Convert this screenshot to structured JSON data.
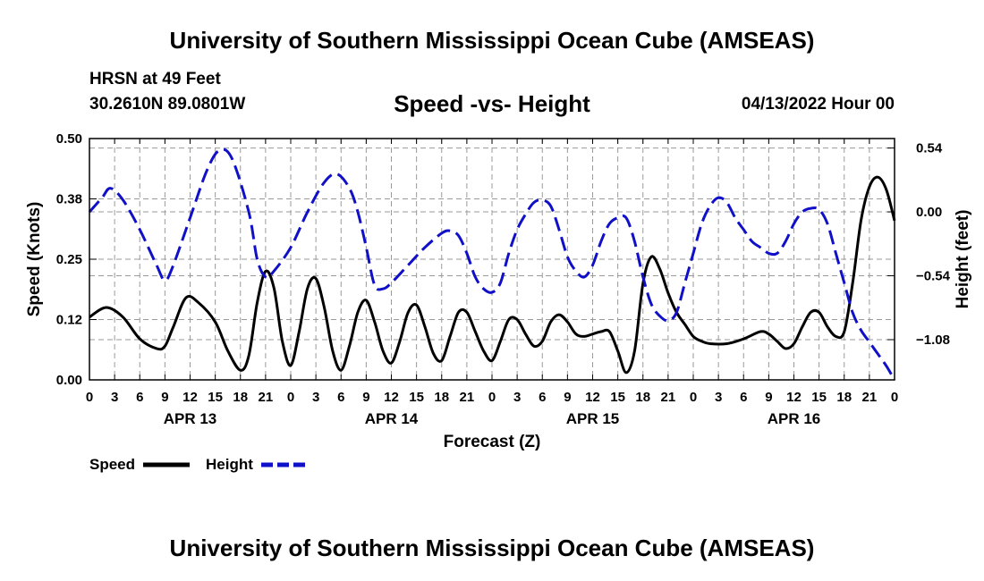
{
  "header": {
    "title": "University of Southern Mississippi Ocean Cube (AMSEAS)",
    "station": "HRSN at 49 Feet",
    "coords": "30.2610N  89.0801W",
    "subtitle": "Speed -vs- Height",
    "datetime": "04/13/2022 Hour 00"
  },
  "footer": {
    "title": "University of Southern Mississippi Ocean Cube (AMSEAS)"
  },
  "colors": {
    "speed": "#000000",
    "height": "#1010c8",
    "grid": "#9a9a9a"
  },
  "legend": {
    "speed_label": "Speed",
    "height_label": "Height"
  },
  "chart_data": {
    "type": "line",
    "xlabel": "Forecast (Z)",
    "ylabel_left": "Speed (Knots)",
    "ylabel_right": "Height (feet)",
    "x_unit": "forecast hour",
    "xlim": [
      0,
      96
    ],
    "ylim_left": [
      0,
      0.5
    ],
    "ylim_right": [
      -1.42,
      0.62
    ],
    "left_ticks": [
      {
        "value": 0.0,
        "label": "0.00"
      },
      {
        "value": 0.125,
        "label": "0.12"
      },
      {
        "value": 0.25,
        "label": "0.25"
      },
      {
        "value": 0.375,
        "label": "0.38"
      },
      {
        "value": 0.5,
        "label": "0.50"
      }
    ],
    "right_ticks": [
      {
        "value": 0.54,
        "label": "0.54"
      },
      {
        "value": 0.0,
        "label": "0.00"
      },
      {
        "value": -0.54,
        "label": "−0.54"
      },
      {
        "value": -1.08,
        "label": "−1.08"
      }
    ],
    "x_tick_labels": [
      "0",
      "3",
      "6",
      "9",
      "12",
      "15",
      "18",
      "21",
      "0",
      "3",
      "6",
      "9",
      "12",
      "15",
      "18",
      "21",
      "0",
      "3",
      "6",
      "9",
      "12",
      "15",
      "18",
      "21",
      "0",
      "3",
      "6",
      "9",
      "12",
      "15",
      "18",
      "21",
      "0"
    ],
    "day_labels": [
      {
        "hour": 12,
        "label": "APR 13"
      },
      {
        "hour": 36,
        "label": "APR 14"
      },
      {
        "hour": 60,
        "label": "APR 15"
      },
      {
        "hour": 84,
        "label": "APR 16"
      }
    ],
    "series": [
      {
        "name": "Speed",
        "axis": "left",
        "points": [
          [
            0,
            0.13
          ],
          [
            2,
            0.15
          ],
          [
            4,
            0.13
          ],
          [
            6,
            0.085
          ],
          [
            8,
            0.065
          ],
          [
            9,
            0.07
          ],
          [
            10,
            0.11
          ],
          [
            11.5,
            0.17
          ],
          [
            13,
            0.16
          ],
          [
            15,
            0.12
          ],
          [
            16.5,
            0.06
          ],
          [
            18,
            0.02
          ],
          [
            19,
            0.05
          ],
          [
            20,
            0.16
          ],
          [
            21,
            0.225
          ],
          [
            22,
            0.19
          ],
          [
            23,
            0.08
          ],
          [
            24,
            0.03
          ],
          [
            25,
            0.1
          ],
          [
            26,
            0.19
          ],
          [
            27,
            0.21
          ],
          [
            28,
            0.15
          ],
          [
            29,
            0.06
          ],
          [
            30,
            0.02
          ],
          [
            31,
            0.07
          ],
          [
            32,
            0.14
          ],
          [
            33,
            0.165
          ],
          [
            34,
            0.12
          ],
          [
            35,
            0.06
          ],
          [
            36,
            0.035
          ],
          [
            37,
            0.08
          ],
          [
            38,
            0.14
          ],
          [
            39,
            0.155
          ],
          [
            40,
            0.11
          ],
          [
            41,
            0.055
          ],
          [
            42,
            0.04
          ],
          [
            43,
            0.09
          ],
          [
            44,
            0.14
          ],
          [
            45,
            0.14
          ],
          [
            46,
            0.1
          ],
          [
            47,
            0.06
          ],
          [
            48,
            0.04
          ],
          [
            49,
            0.08
          ],
          [
            50,
            0.125
          ],
          [
            51,
            0.125
          ],
          [
            52,
            0.095
          ],
          [
            53,
            0.07
          ],
          [
            54,
            0.08
          ],
          [
            55,
            0.12
          ],
          [
            56,
            0.135
          ],
          [
            57,
            0.12
          ],
          [
            58,
            0.095
          ],
          [
            59,
            0.09
          ],
          [
            60,
            0.095
          ],
          [
            61,
            0.1
          ],
          [
            62,
            0.1
          ],
          [
            63,
            0.06
          ],
          [
            64,
            0.015
          ],
          [
            65,
            0.06
          ],
          [
            66,
            0.2
          ],
          [
            67,
            0.255
          ],
          [
            68,
            0.23
          ],
          [
            69,
            0.18
          ],
          [
            70,
            0.14
          ],
          [
            71,
            0.115
          ],
          [
            72,
            0.09
          ],
          [
            73,
            0.08
          ],
          [
            74,
            0.075
          ],
          [
            76,
            0.075
          ],
          [
            78,
            0.085
          ],
          [
            80,
            0.1
          ],
          [
            81,
            0.095
          ],
          [
            82,
            0.08
          ],
          [
            83,
            0.065
          ],
          [
            84,
            0.075
          ],
          [
            85,
            0.11
          ],
          [
            86,
            0.14
          ],
          [
            87,
            0.14
          ],
          [
            88,
            0.11
          ],
          [
            89,
            0.09
          ],
          [
            90,
            0.1
          ],
          [
            91,
            0.2
          ],
          [
            92,
            0.33
          ],
          [
            93,
            0.4
          ],
          [
            94,
            0.42
          ],
          [
            95,
            0.395
          ],
          [
            96,
            0.33
          ]
        ]
      },
      {
        "name": "Height",
        "axis": "right",
        "points": [
          [
            0,
            0.0
          ],
          [
            1.5,
            0.12
          ],
          [
            2.5,
            0.2
          ],
          [
            4,
            0.1
          ],
          [
            6,
            -0.15
          ],
          [
            8,
            -0.45
          ],
          [
            9,
            -0.58
          ],
          [
            10,
            -0.45
          ],
          [
            12,
            -0.05
          ],
          [
            14,
            0.35
          ],
          [
            15.5,
            0.52
          ],
          [
            17,
            0.45
          ],
          [
            19,
            0.0
          ],
          [
            20,
            -0.4
          ],
          [
            21,
            -0.55
          ],
          [
            22,
            -0.5
          ],
          [
            24,
            -0.3
          ],
          [
            26,
            0.0
          ],
          [
            28,
            0.25
          ],
          [
            29.5,
            0.32
          ],
          [
            31,
            0.2
          ],
          [
            32,
            0.0
          ],
          [
            33,
            -0.3
          ],
          [
            34,
            -0.62
          ],
          [
            35,
            -0.65
          ],
          [
            36,
            -0.6
          ],
          [
            38,
            -0.45
          ],
          [
            40,
            -0.3
          ],
          [
            42,
            -0.18
          ],
          [
            43,
            -0.16
          ],
          [
            44,
            -0.2
          ],
          [
            45,
            -0.35
          ],
          [
            46,
            -0.55
          ],
          [
            47,
            -0.65
          ],
          [
            48,
            -0.68
          ],
          [
            49,
            -0.6
          ],
          [
            50,
            -0.35
          ],
          [
            51,
            -0.15
          ],
          [
            52,
            -0.02
          ],
          [
            53,
            0.08
          ],
          [
            54,
            0.1
          ],
          [
            55,
            0.05
          ],
          [
            56,
            -0.15
          ],
          [
            57,
            -0.38
          ],
          [
            58,
            -0.5
          ],
          [
            59,
            -0.55
          ],
          [
            60,
            -0.45
          ],
          [
            61,
            -0.25
          ],
          [
            62,
            -0.1
          ],
          [
            63,
            -0.05
          ],
          [
            64,
            -0.05
          ],
          [
            65,
            -0.25
          ],
          [
            66,
            -0.55
          ],
          [
            67,
            -0.78
          ],
          [
            68,
            -0.88
          ],
          [
            69,
            -0.92
          ],
          [
            70,
            -0.85
          ],
          [
            71,
            -0.6
          ],
          [
            72,
            -0.35
          ],
          [
            73,
            -0.1
          ],
          [
            74,
            0.05
          ],
          [
            75,
            0.12
          ],
          [
            76,
            0.08
          ],
          [
            77,
            -0.05
          ],
          [
            78,
            -0.15
          ],
          [
            79,
            -0.25
          ],
          [
            80,
            -0.3
          ],
          [
            81,
            -0.35
          ],
          [
            82,
            -0.35
          ],
          [
            83,
            -0.25
          ],
          [
            84,
            -0.1
          ],
          [
            85,
            0.0
          ],
          [
            86,
            0.03
          ],
          [
            87,
            0.02
          ],
          [
            88,
            -0.1
          ],
          [
            89,
            -0.35
          ],
          [
            90,
            -0.6
          ],
          [
            91,
            -0.85
          ],
          [
            92,
            -1.0
          ],
          [
            93,
            -1.1
          ],
          [
            94,
            -1.2
          ],
          [
            95,
            -1.3
          ],
          [
            96,
            -1.42
          ]
        ]
      }
    ]
  }
}
